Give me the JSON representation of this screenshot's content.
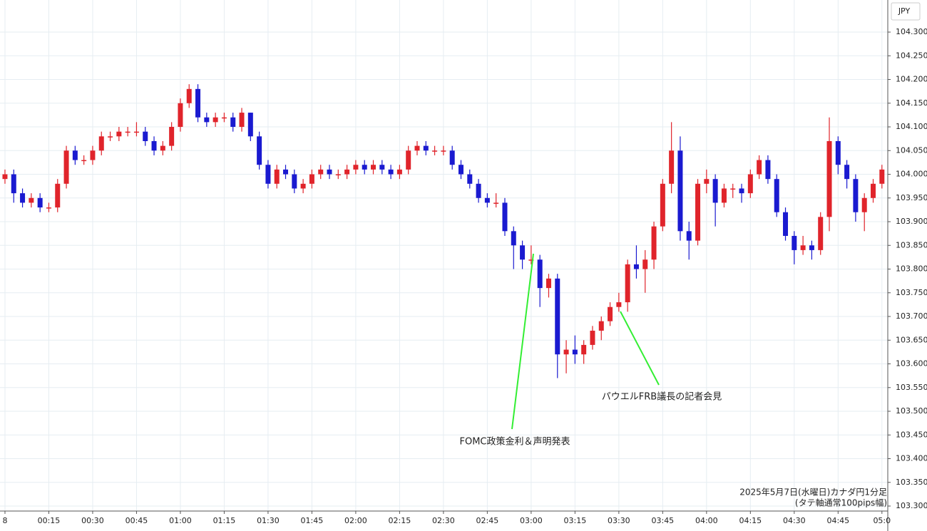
{
  "chart_data": {
    "type": "candlestick",
    "currency": "JPY",
    "notes": [
      "2025年5月7日(水曜日)カナダ円1分足",
      "(タテ軸通常100pips幅)"
    ],
    "annotations": [
      "FOMC政策金利＆声明発表",
      "パウエルFRB議長の記者会見"
    ],
    "up_color": "#e0242b",
    "down_color": "#1a1ad0",
    "grid": true,
    "xlim": [
      -1.7,
      302
    ],
    "ylim": [
      103.2925,
      104.3677
    ],
    "xticks": [
      {
        "value": 0,
        "label": "8"
      },
      {
        "value": 15,
        "label": "00:15"
      },
      {
        "value": 30,
        "label": "00:30"
      },
      {
        "value": 45,
        "label": "00:45"
      },
      {
        "value": 60,
        "label": "01:00"
      },
      {
        "value": 75,
        "label": "01:15"
      },
      {
        "value": 90,
        "label": "01:30"
      },
      {
        "value": 105,
        "label": "01:45"
      },
      {
        "value": 120,
        "label": "02:00"
      },
      {
        "value": 135,
        "label": "02:15"
      },
      {
        "value": 150,
        "label": "02:30"
      },
      {
        "value": 165,
        "label": "02:45"
      },
      {
        "value": 180,
        "label": "03:00"
      },
      {
        "value": 195,
        "label": "03:15"
      },
      {
        "value": 210,
        "label": "03:30"
      },
      {
        "value": 225,
        "label": "03:45"
      },
      {
        "value": 240,
        "label": "04:00"
      },
      {
        "value": 255,
        "label": "04:15"
      },
      {
        "value": 270,
        "label": "04:30"
      },
      {
        "value": 285,
        "label": "04:45"
      },
      {
        "value": 300,
        "label": "05:0"
      }
    ],
    "yticks": [
      {
        "value": 103.3,
        "label": "103.300"
      },
      {
        "value": 103.35,
        "label": "103.350"
      },
      {
        "value": 103.4,
        "label": "103.400"
      },
      {
        "value": 103.45,
        "label": "103.450"
      },
      {
        "value": 103.5,
        "label": "103.500"
      },
      {
        "value": 103.55,
        "label": "103.550"
      },
      {
        "value": 103.6,
        "label": "103.600"
      },
      {
        "value": 103.65,
        "label": "103.650"
      },
      {
        "value": 103.7,
        "label": "103.700"
      },
      {
        "value": 103.75,
        "label": "103.750"
      },
      {
        "value": 103.8,
        "label": "103.800"
      },
      {
        "value": 103.85,
        "label": "103.850"
      },
      {
        "value": 103.9,
        "label": "103.900"
      },
      {
        "value": 103.95,
        "label": "103.950"
      },
      {
        "value": 104.0,
        "label": "104.000"
      },
      {
        "value": 104.05,
        "label": "104.050"
      },
      {
        "value": 104.1,
        "label": "104.100"
      },
      {
        "value": 104.15,
        "label": "104.150"
      },
      {
        "value": 104.2,
        "label": "104.200"
      },
      {
        "value": 104.25,
        "label": "104.250"
      },
      {
        "value": 104.3,
        "label": "104.300"
      }
    ],
    "x": [
      0,
      3,
      6,
      9,
      12,
      15,
      18,
      21,
      24,
      27,
      30,
      33,
      36,
      39,
      42,
      45,
      48,
      51,
      54,
      57,
      60,
      63,
      66,
      69,
      72,
      75,
      78,
      81,
      84,
      87,
      90,
      93,
      96,
      99,
      102,
      105,
      108,
      111,
      114,
      117,
      120,
      123,
      126,
      129,
      132,
      135,
      138,
      141,
      144,
      147,
      150,
      153,
      156,
      159,
      162,
      165,
      168,
      171,
      174,
      177,
      180,
      183,
      186,
      189,
      192,
      195,
      198,
      201,
      204,
      207,
      210,
      213,
      216,
      219,
      222,
      225,
      228,
      231,
      234,
      237,
      240,
      243,
      246,
      249,
      252,
      255,
      258,
      261,
      264,
      267,
      270,
      273,
      276,
      279,
      282,
      285,
      288,
      291,
      294,
      297,
      300
    ],
    "open": [
      103.99,
      104.0,
      103.96,
      103.94,
      103.95,
      103.93,
      103.93,
      103.98,
      104.05,
      104.03,
      104.03,
      104.05,
      104.08,
      104.08,
      104.09,
      104.09,
      104.09,
      104.07,
      104.05,
      104.06,
      104.1,
      104.15,
      104.18,
      104.12,
      104.11,
      104.12,
      104.12,
      104.1,
      104.13,
      104.08,
      104.02,
      103.98,
      104.01,
      104.0,
      103.97,
      103.98,
      104.0,
      104.01,
      104.0,
      104.0,
      104.01,
      104.02,
      104.01,
      104.02,
      104.01,
      104.0,
      104.01,
      104.05,
      104.06,
      104.05,
      104.05,
      104.05,
      104.02,
      104.0,
      103.98,
      103.95,
      103.94,
      103.94,
      103.88,
      103.85,
      103.82,
      103.82,
      103.76,
      103.78,
      103.62,
      103.63,
      103.62,
      103.64,
      103.67,
      103.69,
      103.72,
      103.73,
      103.81,
      103.8,
      103.82,
      103.89,
      103.98,
      104.05,
      103.88,
      103.86,
      103.98,
      103.99,
      103.94,
      103.97,
      103.97,
      103.96,
      104.0,
      104.03,
      103.99,
      103.92,
      103.87,
      103.84,
      103.85,
      103.84,
      103.91,
      104.07,
      104.02,
      103.99,
      103.92,
      103.95,
      103.98
    ],
    "high": [
      104.01,
      104.01,
      103.97,
      103.96,
      103.96,
      103.94,
      103.99,
      104.06,
      104.06,
      104.04,
      104.06,
      104.09,
      104.09,
      104.1,
      104.1,
      104.11,
      104.1,
      104.08,
      104.07,
      104.11,
      104.16,
      104.19,
      104.19,
      104.13,
      104.13,
      104.13,
      104.13,
      104.14,
      104.13,
      104.09,
      104.03,
      104.02,
      104.02,
      104.01,
      103.99,
      104.01,
      104.02,
      104.02,
      104.01,
      104.02,
      104.03,
      104.03,
      104.03,
      104.03,
      104.02,
      104.02,
      104.06,
      104.07,
      104.07,
      104.06,
      104.06,
      104.06,
      104.03,
      104.01,
      103.99,
      103.96,
      103.96,
      103.95,
      103.89,
      103.86,
      103.85,
      103.83,
      103.79,
      103.79,
      103.65,
      103.66,
      103.65,
      103.68,
      103.7,
      103.73,
      103.75,
      103.82,
      103.85,
      103.84,
      103.9,
      103.99,
      104.11,
      104.08,
      103.9,
      103.99,
      104.01,
      104.0,
      103.98,
      103.98,
      103.98,
      104.01,
      104.04,
      104.04,
      104.0,
      103.93,
      103.88,
      103.87,
      103.86,
      103.92,
      104.12,
      104.08,
      104.03,
      104.0,
      103.96,
      103.99,
      104.02
    ],
    "low": [
      103.98,
      103.94,
      103.93,
      103.93,
      103.92,
      103.92,
      103.92,
      103.97,
      104.02,
      104.02,
      104.02,
      104.04,
      104.07,
      104.07,
      104.08,
      104.08,
      104.06,
      104.04,
      104.04,
      104.05,
      104.09,
      104.14,
      104.11,
      104.1,
      104.1,
      104.11,
      104.09,
      104.09,
      104.07,
      104.01,
      103.97,
      103.97,
      103.99,
      103.96,
      103.96,
      103.97,
      103.99,
      103.99,
      103.99,
      103.99,
      104.0,
      104.0,
      104.0,
      104.0,
      103.99,
      103.99,
      104.0,
      104.04,
      104.04,
      104.04,
      104.04,
      104.01,
      103.99,
      103.97,
      103.94,
      103.93,
      103.93,
      103.87,
      103.8,
      103.8,
      103.81,
      103.72,
      103.74,
      103.57,
      103.58,
      103.6,
      103.6,
      103.63,
      103.65,
      103.68,
      103.71,
      103.71,
      103.78,
      103.75,
      103.8,
      103.88,
      103.96,
      103.86,
      103.82,
      103.85,
      103.96,
      103.89,
      103.93,
      103.95,
      103.94,
      103.95,
      103.99,
      103.98,
      103.91,
      103.86,
      103.81,
      103.83,
      103.82,
      103.83,
      103.88,
      104.0,
      103.97,
      103.9,
      103.88,
      103.94,
      103.97
    ],
    "close": [
      104.0,
      103.96,
      103.94,
      103.95,
      103.93,
      103.93,
      103.98,
      104.05,
      104.03,
      104.03,
      104.05,
      104.08,
      104.08,
      104.09,
      104.09,
      104.09,
      104.07,
      104.05,
      104.06,
      104.1,
      104.15,
      104.18,
      104.12,
      104.11,
      104.12,
      104.12,
      104.1,
      104.13,
      104.08,
      104.02,
      103.98,
      104.01,
      104.0,
      103.97,
      103.98,
      104.0,
      104.01,
      104.0,
      104.0,
      104.01,
      104.02,
      104.01,
      104.02,
      104.01,
      104.0,
      104.01,
      104.05,
      104.06,
      104.05,
      104.05,
      104.05,
      104.02,
      104.0,
      103.98,
      103.95,
      103.94,
      103.94,
      103.88,
      103.85,
      103.82,
      103.82,
      103.76,
      103.78,
      103.62,
      103.63,
      103.62,
      103.64,
      103.67,
      103.69,
      103.72,
      103.73,
      103.81,
      103.8,
      103.82,
      103.89,
      103.98,
      104.05,
      103.88,
      103.86,
      103.98,
      103.99,
      103.94,
      103.97,
      103.97,
      103.96,
      104.0,
      104.03,
      103.99,
      103.92,
      103.87,
      103.84,
      103.85,
      103.84,
      103.91,
      104.07,
      104.02,
      103.99,
      103.92,
      103.95,
      103.98,
      104.01
    ]
  }
}
